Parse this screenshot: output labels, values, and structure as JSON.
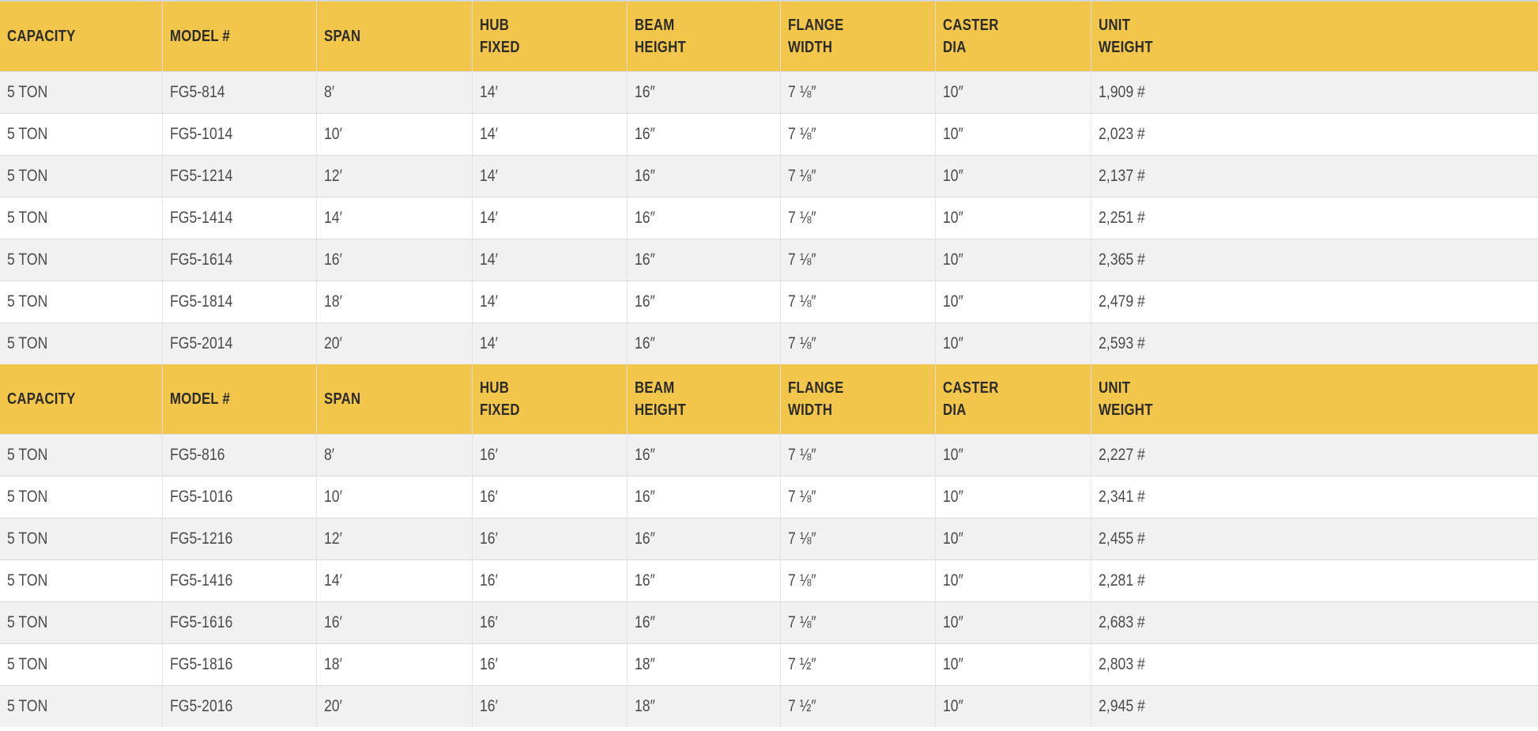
{
  "colors": {
    "header_bg": "#f1c64b",
    "header_text": "#2d2b26",
    "row_bg": "#ffffff",
    "row_alt_bg": "#f1f1f2",
    "row_text": "#4b4b4b",
    "grid_border": "#e3e3e3",
    "row_border": "#dcdcdc",
    "top_line": "#d6d6d6"
  },
  "columns": [
    {
      "key": "capacity",
      "lines": [
        "CAPACITY"
      ]
    },
    {
      "key": "model",
      "lines": [
        "MODEL #"
      ]
    },
    {
      "key": "span",
      "lines": [
        "SPAN"
      ]
    },
    {
      "key": "hub",
      "lines": [
        "HUB",
        "FIXED"
      ]
    },
    {
      "key": "beam",
      "lines": [
        "BEAM",
        "HEIGHT"
      ]
    },
    {
      "key": "flange",
      "lines": [
        "FLANGE",
        "WIDTH"
      ]
    },
    {
      "key": "caster",
      "lines": [
        "CASTER",
        "DIA"
      ]
    },
    {
      "key": "weight",
      "lines": [
        "UNIT",
        "WEIGHT"
      ]
    }
  ],
  "tables": [
    {
      "name": "spec-table-hub-14",
      "rows": [
        {
          "capacity": "5 TON",
          "model": "FG5-814",
          "span": "8′",
          "hub": "14′",
          "beam": "16″",
          "flange": "7 ⅛″",
          "caster": "10″",
          "weight": "1,909 #"
        },
        {
          "capacity": "5 TON",
          "model": "FG5-1014",
          "span": "10′",
          "hub": "14′",
          "beam": "16″",
          "flange": "7 ⅛″",
          "caster": "10″",
          "weight": "2,023 #"
        },
        {
          "capacity": "5 TON",
          "model": "FG5-1214",
          "span": "12′",
          "hub": "14′",
          "beam": "16″",
          "flange": "7 ⅛″",
          "caster": "10″",
          "weight": "2,137 #"
        },
        {
          "capacity": "5 TON",
          "model": "FG5-1414",
          "span": "14′",
          "hub": "14′",
          "beam": "16″",
          "flange": "7 ⅛″",
          "caster": "10″",
          "weight": "2,251 #"
        },
        {
          "capacity": "5 TON",
          "model": "FG5-1614",
          "span": "16′",
          "hub": "14′",
          "beam": "16″",
          "flange": "7 ⅛″",
          "caster": "10″",
          "weight": "2,365 #"
        },
        {
          "capacity": "5 TON",
          "model": "FG5-1814",
          "span": "18′",
          "hub": "14′",
          "beam": "16″",
          "flange": "7 ⅛″",
          "caster": "10″",
          "weight": "2,479 #"
        },
        {
          "capacity": "5 TON",
          "model": "FG5-2014",
          "span": "20′",
          "hub": "14′",
          "beam": "16″",
          "flange": "7 ⅛″",
          "caster": "10″",
          "weight": "2,593 #"
        }
      ]
    },
    {
      "name": "spec-table-hub-16",
      "rows": [
        {
          "capacity": "5 TON",
          "model": "FG5-816",
          "span": "8′",
          "hub": "16′",
          "beam": "16″",
          "flange": "7 ⅛″",
          "caster": "10″",
          "weight": "2,227 #"
        },
        {
          "capacity": "5 TON",
          "model": "FG5-1016",
          "span": "10′",
          "hub": "16′",
          "beam": "16″",
          "flange": "7 ⅛″",
          "caster": "10″",
          "weight": "2,341 #"
        },
        {
          "capacity": "5 TON",
          "model": "FG5-1216",
          "span": "12′",
          "hub": "16′",
          "beam": "16″",
          "flange": "7 ⅛″",
          "caster": "10″",
          "weight": "2,455 #"
        },
        {
          "capacity": "5 TON",
          "model": "FG5-1416",
          "span": "14′",
          "hub": "16′",
          "beam": "16″",
          "flange": "7 ⅛″",
          "caster": "10″",
          "weight": "2,281 #"
        },
        {
          "capacity": "5 TON",
          "model": "FG5-1616",
          "span": "16′",
          "hub": "16′",
          "beam": "16″",
          "flange": "7 ⅛″",
          "caster": "10″",
          "weight": "2,683 #"
        },
        {
          "capacity": "5 TON",
          "model": "FG5-1816",
          "span": "18′",
          "hub": "16′",
          "beam": "18″",
          "flange": "7 ½″",
          "caster": "10″",
          "weight": "2,803 #"
        },
        {
          "capacity": "5 TON",
          "model": "FG5-2016",
          "span": "20′",
          "hub": "16′",
          "beam": "18″",
          "flange": "7 ½″",
          "caster": "10″",
          "weight": "2,945 #"
        }
      ]
    }
  ]
}
